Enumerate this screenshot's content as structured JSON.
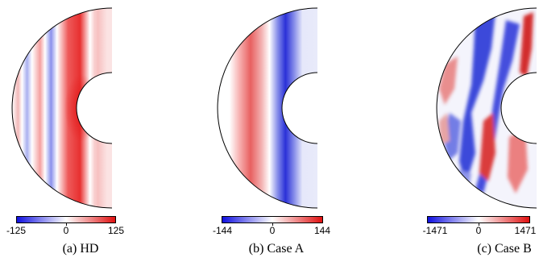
{
  "colormap": {
    "negative": "#1010e0",
    "zero": "#ffffff",
    "positive": "#e01010"
  },
  "panels": [
    {
      "caption": "(a) HD",
      "cbar_min": "-125",
      "cbar_mid": "0",
      "cbar_max": "125",
      "style": "bands-hd"
    },
    {
      "caption": "(b) Case A",
      "cbar_min": "-144",
      "cbar_mid": "0",
      "cbar_max": "144",
      "style": "bands-a"
    },
    {
      "caption": "(c) Case B",
      "cbar_min": "-1471",
      "cbar_mid": "0",
      "cbar_max": "1471",
      "style": "turbulent"
    }
  ]
}
